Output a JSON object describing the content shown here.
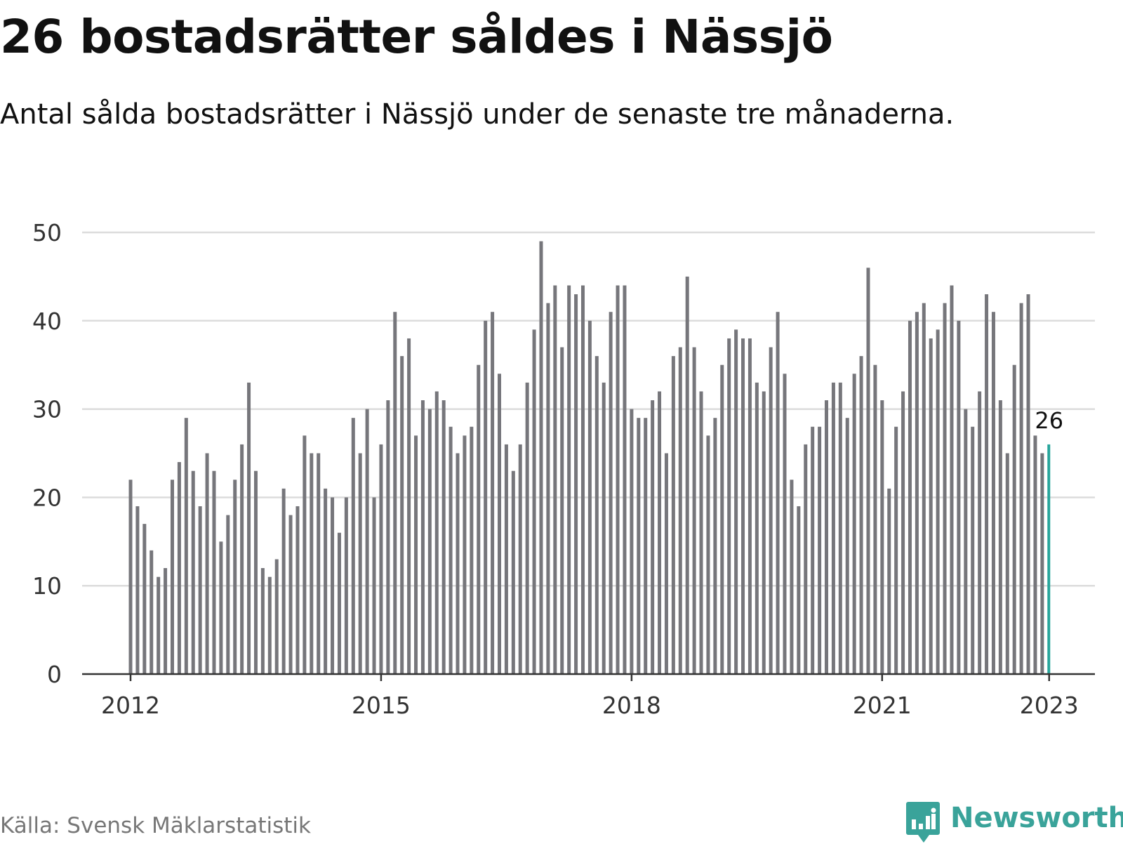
{
  "title": "26 bostadsrätter såldes i Nässjö",
  "subtitle": "Antal sålda bostadsrätter i Nässjö under de senaste tre månaderna.",
  "source": "Källa: Svensk Mäklarstatistik",
  "brand": "Newsworthy",
  "colors": {
    "bar": "#76767b",
    "highlight": "#27a59b",
    "grid": "#dcdcdc",
    "axis": "#333333",
    "brand": "#3aa39a"
  },
  "chart_data": {
    "type": "bar",
    "xlabel": "",
    "ylabel": "",
    "ylim": [
      0,
      50
    ],
    "yticks": [
      "0",
      "10",
      "20",
      "30",
      "40",
      "50"
    ],
    "xticks": [
      {
        "label": "2012",
        "index": 0
      },
      {
        "label": "2015",
        "index": 36
      },
      {
        "label": "2018",
        "index": 72
      },
      {
        "label": "2021",
        "index": 108
      },
      {
        "label": "2023",
        "index": 132
      }
    ],
    "series": [
      {
        "values": [
          22,
          19,
          17,
          14,
          11,
          12,
          22,
          24,
          29,
          23,
          19,
          25,
          23,
          15,
          18,
          22,
          26,
          33,
          23,
          12,
          11,
          13,
          21,
          18,
          19,
          27,
          25,
          25,
          21,
          20,
          16,
          20,
          29,
          25,
          30,
          20,
          26,
          31,
          41,
          36,
          38,
          27,
          31,
          30,
          32,
          31,
          28,
          25,
          27,
          28,
          35,
          40,
          41,
          34,
          26,
          23,
          26,
          33,
          39,
          49,
          42,
          44,
          37,
          44,
          43,
          44,
          40,
          36,
          33,
          41,
          44,
          44,
          30,
          29,
          29,
          31,
          32,
          25,
          36,
          37,
          45,
          37,
          32,
          27,
          29,
          35,
          38,
          39,
          38,
          38,
          33,
          32,
          37,
          41,
          34,
          22,
          19,
          26,
          28,
          28,
          31,
          33,
          33,
          29,
          34,
          36,
          46,
          35,
          31,
          21,
          28,
          32,
          40,
          41,
          42,
          38,
          39,
          42,
          44,
          40,
          30,
          28,
          32,
          43,
          41,
          31,
          25,
          35,
          42,
          43,
          27,
          25,
          26
        ]
      }
    ],
    "highlight": {
      "index": 132,
      "value": 26,
      "label": "26"
    }
  }
}
